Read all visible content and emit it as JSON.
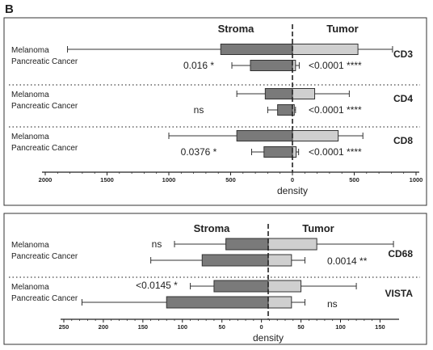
{
  "panel_letter": "B",
  "chart_data": [
    {
      "type": "bar",
      "orientation": "horizontal",
      "header": {
        "left": "Stroma",
        "right": "Tumor"
      },
      "xlabel": "density",
      "xlim": [
        -2000,
        1000
      ],
      "x_ticks": [
        -2000,
        -1500,
        -1000,
        -500,
        0,
        500,
        1000
      ],
      "x_tick_labels": [
        "2000",
        "1500",
        "1000",
        "500",
        "0",
        "500",
        "1000"
      ],
      "row_labels": [
        "Melanoma",
        "Pancreatic Cancer"
      ],
      "colors": {
        "stroma": "#7a7a7a",
        "tumor": "#cfcfcf"
      },
      "groups": [
        {
          "name": "CD3",
          "left_annotation": "0.016  *",
          "right_annotation": "<0.0001  ****",
          "rows": [
            {
              "label": "Melanoma",
              "stroma": 580,
              "stroma_err": 1240,
              "tumor": 530,
              "tumor_err": 280
            },
            {
              "label": "Pancreatic Cancer",
              "stroma": 340,
              "stroma_err": 150,
              "tumor": 25,
              "tumor_err": 30
            }
          ]
        },
        {
          "name": "CD4",
          "left_annotation": "ns",
          "right_annotation": "<0.0001  ****",
          "rows": [
            {
              "label": "Melanoma",
              "stroma": 220,
              "stroma_err": 230,
              "tumor": 180,
              "tumor_err": 280
            },
            {
              "label": "Pancreatic Cancer",
              "stroma": 120,
              "stroma_err": 80,
              "tumor": 15,
              "tumor_err": 10
            }
          ]
        },
        {
          "name": "CD8",
          "left_annotation": "0.0376  *",
          "right_annotation": "<0.0001  ****",
          "rows": [
            {
              "label": "Melanoma",
              "stroma": 450,
              "stroma_err": 550,
              "tumor": 370,
              "tumor_err": 200
            },
            {
              "label": "Pancreatic Cancer",
              "stroma": 230,
              "stroma_err": 100,
              "tumor": 30,
              "tumor_err": 20
            }
          ]
        }
      ]
    },
    {
      "type": "bar",
      "orientation": "horizontal",
      "header": {
        "left": "Stroma",
        "right": "Tumor"
      },
      "xlabel": "density",
      "xlim": [
        -250,
        170
      ],
      "x_ticks": [
        -250,
        -200,
        -150,
        -100,
        -50,
        0,
        50,
        100,
        150
      ],
      "x_tick_labels": [
        "250",
        "200",
        "150",
        "100",
        "50",
        "0",
        "50",
        "100",
        "150"
      ],
      "row_labels": [
        "Melanoma",
        "Pancreatic Cancer"
      ],
      "colors": {
        "stroma": "#7a7a7a",
        "tumor": "#cfcfcf"
      },
      "groups": [
        {
          "name": "CD68",
          "left_annotation": "ns",
          "right_annotation": "0.0014  **",
          "rows": [
            {
              "label": "Melanoma",
              "stroma": 45,
              "stroma_err": 65,
              "tumor": 70,
              "tumor_err": 97
            },
            {
              "label": "Pancreatic Cancer",
              "stroma": 75,
              "stroma_err": 65,
              "tumor": 38,
              "tumor_err": 17
            }
          ]
        },
        {
          "name": "VISTA",
          "left_annotation": "<0.0145  *",
          "right_annotation": "ns",
          "rows": [
            {
              "label": "Melanoma",
              "stroma": 60,
              "stroma_err": 30,
              "tumor": 50,
              "tumor_err": 70
            },
            {
              "label": "Pancreatic Cancer",
              "stroma": 120,
              "stroma_err": 107,
              "tumor": 38,
              "tumor_err": 17
            }
          ]
        }
      ]
    }
  ]
}
